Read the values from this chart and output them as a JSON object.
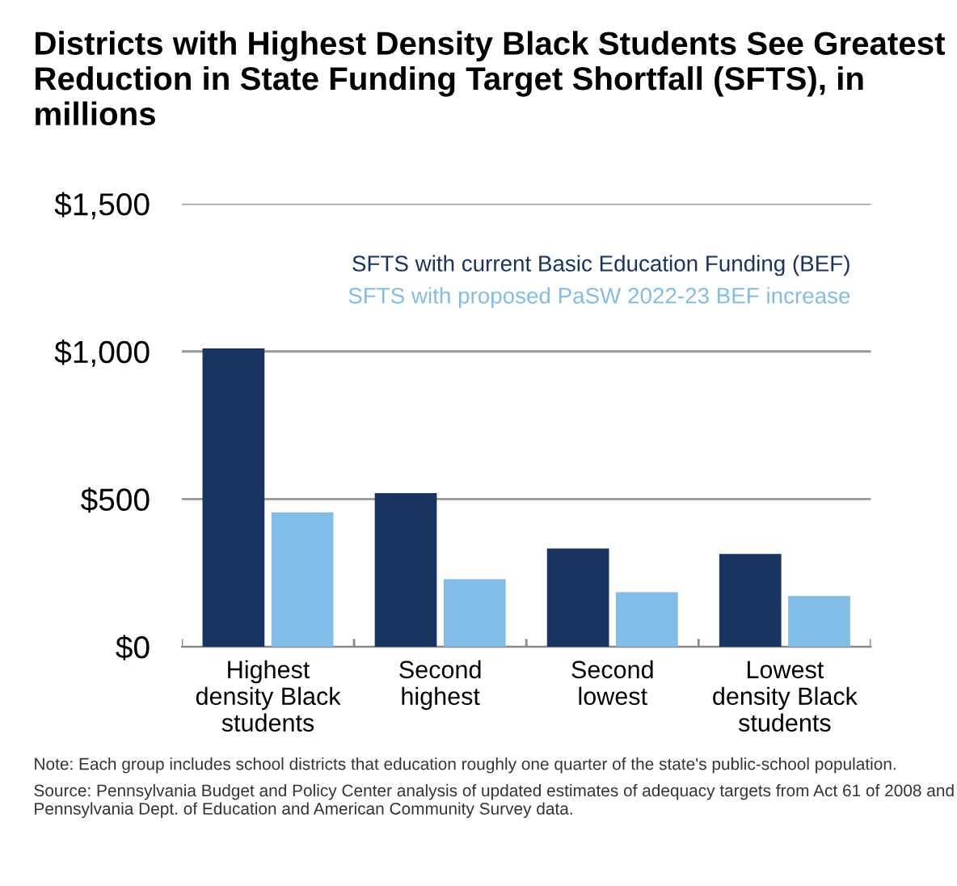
{
  "chart_data": {
    "type": "bar",
    "title": "Districts with Highest Density Black Students See Greatest Reduction in State Funding Target Shortfall (SFTS), in millions",
    "categories": [
      "Highest\ndensity Black\nstudents",
      "Second\nhighest",
      "Second\nlowest",
      "Lowest\ndensity Black\nstudents"
    ],
    "series": [
      {
        "name": "SFTS with current Basic Education Funding (BEF)",
        "color": "#1a3461",
        "values": [
          1010,
          520,
          333,
          314
        ]
      },
      {
        "name": "SFTS with proposed PaSW 2022-23 BEF increase",
        "color": "#82bde8",
        "values": [
          455,
          229,
          185,
          172
        ]
      }
    ],
    "ylim": [
      0,
      1500
    ],
    "yticks": [
      {
        "value": 0,
        "label": "$0"
      },
      {
        "value": 500,
        "label": "$500"
      },
      {
        "value": 1000,
        "label": "$1,000"
      },
      {
        "value": 1500,
        "label": "$1,500"
      }
    ],
    "grid": "y",
    "legend": "top right",
    "annotations": [
      "Note: Each group includes school districts that education roughly one quarter of the state's public-school population.",
      "Source: Pennsylvania Budget and Policy Center analysis of updated estimates of adequacy targets from Act 61 of 2008 and Pennsylvania Dept. of Education and American Community Survey data."
    ]
  }
}
